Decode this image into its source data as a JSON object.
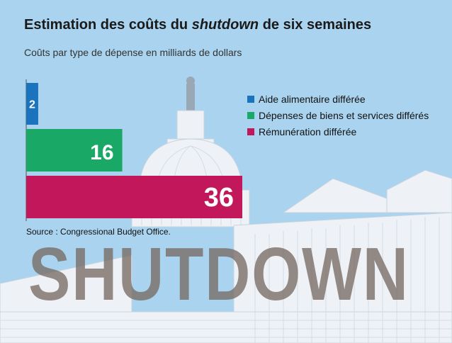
{
  "title_prefix": "Estimation des coûts du ",
  "title_em": "shutdown",
  "title_suffix": " de six semaines",
  "subtitle": "Coûts par type de dépense en milliards de dollars",
  "source": "Source : Congressional Budget Office.",
  "stamp_text": "SHUTDOWN",
  "colors": {
    "background": "#a9d3ee",
    "building": "#eef2f6",
    "building_shadow": "#c7d3de",
    "stamp": "#786c64"
  },
  "chart_data": {
    "type": "bar",
    "orientation": "horizontal",
    "title": "Estimation des coûts du shutdown de six semaines",
    "subtitle": "Coûts par type de dépense en milliards de dollars",
    "xlim": [
      0,
      36
    ],
    "grid": false,
    "legend_position": "right",
    "series": [
      {
        "name": "Aide alimentaire différée",
        "value": 2,
        "color": "#1a74bd"
      },
      {
        "name": "Dépenses de biens et services différés",
        "value": 16,
        "color": "#19a866"
      },
      {
        "name": "Rémunération différée",
        "value": 36,
        "color": "#c2185b"
      }
    ]
  }
}
